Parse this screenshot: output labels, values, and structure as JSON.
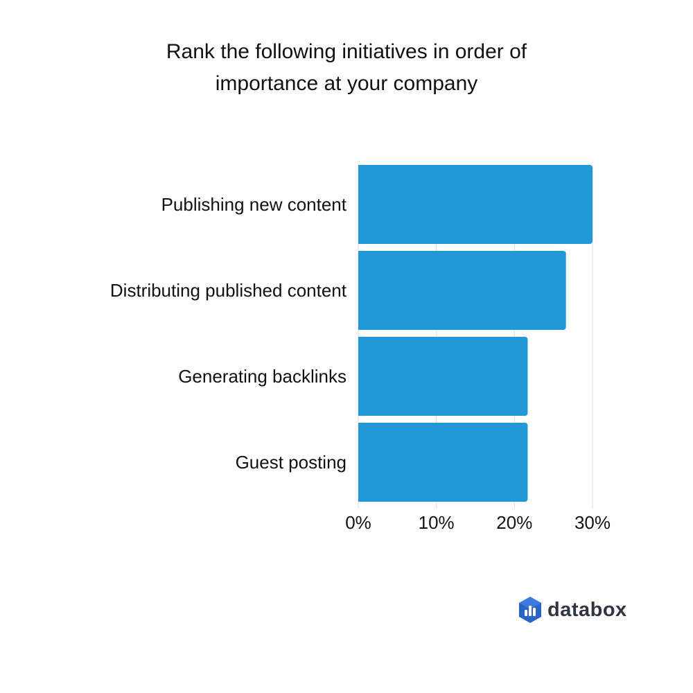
{
  "title_lines": [
    "Rank the following initiatives in order of",
    "importance at your company"
  ],
  "brand": {
    "name": "databox",
    "icon": "databox-logo-icon",
    "colors": {
      "primary": "#2764c5",
      "light": "#4f8cf0"
    }
  },
  "chart_data": {
    "type": "bar",
    "orientation": "horizontal",
    "title": "Rank the following initiatives in order of importance at your company",
    "categories": [
      "Publishing new content",
      "Distributing published content",
      "Generating backlinks",
      "Guest posting"
    ],
    "values": [
      30,
      26.6,
      21.7,
      21.7
    ],
    "value_unit": "%",
    "xlim": [
      0,
      30
    ],
    "x_ticks": [
      "0%",
      "10%",
      "20%",
      "30%"
    ],
    "grid": "vertical",
    "bar_color": "#2199d6",
    "grid_color": "#dddddd",
    "xlabel": "",
    "ylabel": ""
  }
}
